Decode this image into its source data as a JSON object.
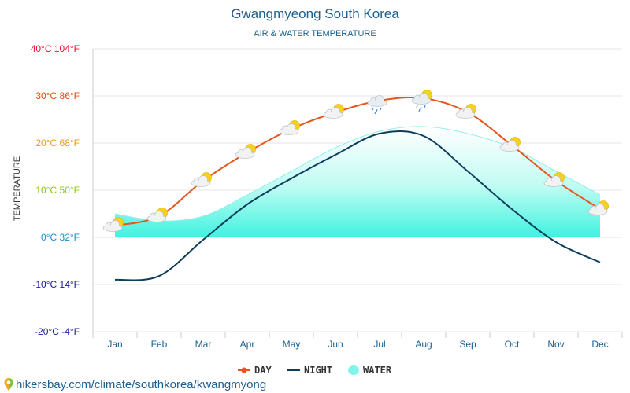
{
  "chart_data": {
    "type": "line",
    "title": "Gwangmyeong South Korea",
    "subtitle": "AIR & WATER TEMPERATURE",
    "ylabel": "TEMPERATURE",
    "ylim": [
      -20,
      40
    ],
    "y_ticks": [
      {
        "value": 40,
        "label": "40°C 104°F"
      },
      {
        "value": 30,
        "label": "30°C 86°F"
      },
      {
        "value": 20,
        "label": "20°C 68°F"
      },
      {
        "value": 10,
        "label": "10°C 50°F"
      },
      {
        "value": 0,
        "label": "0°C 32°F"
      },
      {
        "value": -10,
        "label": "-10°C 14°F"
      },
      {
        "value": -20,
        "label": "-20°C -4°F"
      }
    ],
    "categories": [
      "Jan",
      "Feb",
      "Mar",
      "Apr",
      "May",
      "Jun",
      "Jul",
      "Aug",
      "Sep",
      "Oct",
      "Nov",
      "Dec"
    ],
    "series": [
      {
        "name": "DAY",
        "color": "#e8541a",
        "values": [
          2.5,
          4.5,
          12,
          18,
          23,
          26.5,
          29,
          29.5,
          26.5,
          19.5,
          12,
          6
        ]
      },
      {
        "name": "NIGHT",
        "color": "#0e3d5c",
        "values": [
          -9,
          -8.2,
          -0.5,
          7,
          12.5,
          17.5,
          22,
          21.5,
          14,
          6,
          -1,
          -5.3
        ]
      },
      {
        "name": "WATER",
        "color": "#7ff5ec",
        "values": [
          5,
          3.5,
          4.5,
          9,
          14,
          19,
          22.5,
          23.5,
          22,
          19,
          14,
          9
        ]
      }
    ],
    "weather_icons": [
      "partly-cloudy",
      "partly-cloudy",
      "partly-cloudy",
      "partly-cloudy",
      "partly-cloudy",
      "partly-cloudy",
      "rain-cloud",
      "rain-partly-cloudy",
      "partly-cloudy",
      "partly-cloudy",
      "partly-cloudy",
      "partly-cloudy"
    ],
    "tick_colors": [
      "#e8102a",
      "#e84a10",
      "#e89a10",
      "#8ac910",
      "#1a8fd0",
      "#1a1aa8",
      "#1a1aa8"
    ],
    "grid": true,
    "legend_position": "bottom-center"
  },
  "footer": {
    "source_url": "hikersbay.com/climate/southkorea/kwangmyong",
    "pin_icon": "map-pin-icon"
  }
}
